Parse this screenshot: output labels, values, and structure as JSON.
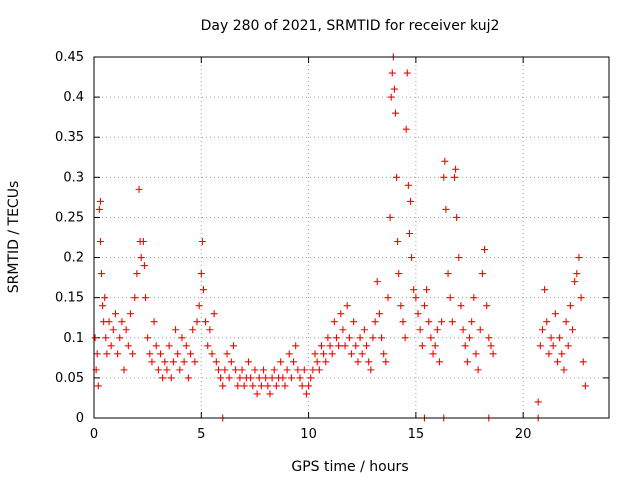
{
  "chart_data": {
    "type": "scatter",
    "title": "Day 280 of 2021, SRMTID for receiver kuj2",
    "xlabel": "GPS time / hours",
    "ylabel": "SRMTID / TECUs",
    "xlim": [
      0,
      24
    ],
    "ylim": [
      0,
      0.45
    ],
    "grid": true,
    "x_ticks": [
      0,
      5,
      10,
      15,
      20
    ],
    "x_tick_labels": [
      "0",
      "5",
      "10",
      "15",
      "20"
    ],
    "y_ticks": [
      0,
      0.05,
      0.1,
      0.15,
      0.2,
      0.25,
      0.3,
      0.35,
      0.4,
      0.45
    ],
    "y_tick_labels": [
      "0",
      "0.05",
      "0.1",
      "0.15",
      "0.2",
      "0.25",
      "0.3",
      "0.35",
      "0.4",
      "0.45"
    ],
    "marker": "+",
    "series": [
      {
        "name": "SRMTID",
        "color": "#ff0000",
        "points": [
          [
            0.05,
            0.1
          ],
          [
            0.1,
            0.06
          ],
          [
            0.15,
            0.08
          ],
          [
            0.2,
            0.04
          ],
          [
            0.25,
            0.26
          ],
          [
            0.3,
            0.27
          ],
          [
            0.3,
            0.22
          ],
          [
            0.35,
            0.18
          ],
          [
            0.4,
            0.14
          ],
          [
            0.45,
            0.12
          ],
          [
            0.5,
            0.15
          ],
          [
            0.55,
            0.1
          ],
          [
            0.6,
            0.08
          ],
          [
            0.7,
            0.12
          ],
          [
            0.8,
            0.09
          ],
          [
            0.9,
            0.11
          ],
          [
            1.0,
            0.13
          ],
          [
            1.1,
            0.08
          ],
          [
            1.2,
            0.1
          ],
          [
            1.3,
            0.12
          ],
          [
            1.4,
            0.06
          ],
          [
            1.5,
            0.11
          ],
          [
            1.6,
            0.09
          ],
          [
            1.7,
            0.13
          ],
          [
            1.8,
            0.08
          ],
          [
            1.9,
            0.15
          ],
          [
            2.0,
            0.18
          ],
          [
            2.1,
            0.285
          ],
          [
            2.15,
            0.22
          ],
          [
            2.2,
            0.2
          ],
          [
            2.3,
            0.22
          ],
          [
            2.35,
            0.19
          ],
          [
            2.4,
            0.15
          ],
          [
            2.5,
            0.1
          ],
          [
            2.6,
            0.08
          ],
          [
            2.7,
            0.07
          ],
          [
            2.8,
            0.12
          ],
          [
            2.9,
            0.09
          ],
          [
            3.0,
            0.06
          ],
          [
            3.1,
            0.08
          ],
          [
            3.2,
            0.05
          ],
          [
            3.3,
            0.07
          ],
          [
            3.4,
            0.06
          ],
          [
            3.5,
            0.09
          ],
          [
            3.6,
            0.05
          ],
          [
            3.7,
            0.07
          ],
          [
            3.8,
            0.11
          ],
          [
            3.9,
            0.08
          ],
          [
            4.0,
            0.06
          ],
          [
            4.1,
            0.1
          ],
          [
            4.2,
            0.07
          ],
          [
            4.3,
            0.09
          ],
          [
            4.4,
            0.05
          ],
          [
            4.5,
            0.08
          ],
          [
            4.6,
            0.11
          ],
          [
            4.7,
            0.07
          ],
          [
            4.8,
            0.12
          ],
          [
            4.9,
            0.14
          ],
          [
            5.0,
            0.18
          ],
          [
            5.05,
            0.22
          ],
          [
            5.1,
            0.16
          ],
          [
            5.2,
            0.12
          ],
          [
            5.3,
            0.09
          ],
          [
            5.4,
            0.11
          ],
          [
            5.5,
            0.08
          ],
          [
            5.6,
            0.13
          ],
          [
            5.7,
            0.07
          ],
          [
            5.8,
            0.06
          ],
          [
            5.9,
            0.05
          ],
          [
            6.0,
            0.04
          ],
          [
            6.1,
            0.06
          ],
          [
            6.2,
            0.08
          ],
          [
            6.3,
            0.05
          ],
          [
            6.4,
            0.07
          ],
          [
            6.5,
            0.09
          ],
          [
            6.6,
            0.06
          ],
          [
            6.7,
            0.04
          ],
          [
            6.8,
            0.05
          ],
          [
            6.9,
            0.06
          ],
          [
            7.0,
            0.04
          ],
          [
            7.1,
            0.05
          ],
          [
            7.2,
            0.07
          ],
          [
            7.3,
            0.05
          ],
          [
            7.4,
            0.04
          ],
          [
            7.5,
            0.06
          ],
          [
            7.6,
            0.03
          ],
          [
            7.7,
            0.05
          ],
          [
            7.8,
            0.04
          ],
          [
            7.9,
            0.06
          ],
          [
            8.0,
            0.05
          ],
          [
            8.1,
            0.04
          ],
          [
            8.2,
            0.03
          ],
          [
            8.3,
            0.05
          ],
          [
            8.4,
            0.06
          ],
          [
            8.5,
            0.04
          ],
          [
            8.6,
            0.05
          ],
          [
            8.7,
            0.07
          ],
          [
            8.8,
            0.05
          ],
          [
            8.9,
            0.04
          ],
          [
            9.0,
            0.06
          ],
          [
            9.1,
            0.08
          ],
          [
            9.2,
            0.05
          ],
          [
            9.3,
            0.07
          ],
          [
            9.4,
            0.09
          ],
          [
            9.5,
            0.06
          ],
          [
            9.6,
            0.05
          ],
          [
            9.7,
            0.04
          ],
          [
            9.8,
            0.06
          ],
          [
            9.9,
            0.03
          ],
          [
            10.0,
            0.04
          ],
          [
            10.1,
            0.05
          ],
          [
            10.2,
            0.06
          ],
          [
            10.3,
            0.08
          ],
          [
            10.4,
            0.07
          ],
          [
            10.5,
            0.06
          ],
          [
            10.6,
            0.09
          ],
          [
            10.7,
            0.08
          ],
          [
            10.8,
            0.07
          ],
          [
            10.9,
            0.1
          ],
          [
            11.0,
            0.09
          ],
          [
            11.1,
            0.08
          ],
          [
            11.2,
            0.12
          ],
          [
            11.3,
            0.1
          ],
          [
            11.4,
            0.09
          ],
          [
            11.5,
            0.13
          ],
          [
            11.6,
            0.11
          ],
          [
            11.7,
            0.09
          ],
          [
            11.8,
            0.14
          ],
          [
            11.9,
            0.1
          ],
          [
            12.0,
            0.08
          ],
          [
            12.1,
            0.12
          ],
          [
            12.2,
            0.09
          ],
          [
            12.3,
            0.07
          ],
          [
            12.4,
            0.1
          ],
          [
            12.5,
            0.08
          ],
          [
            12.6,
            0.11
          ],
          [
            12.7,
            0.09
          ],
          [
            12.8,
            0.07
          ],
          [
            12.9,
            0.06
          ],
          [
            13.0,
            0.1
          ],
          [
            13.1,
            0.12
          ],
          [
            13.2,
            0.17
          ],
          [
            13.3,
            0.13
          ],
          [
            13.4,
            0.1
          ],
          [
            13.5,
            0.08
          ],
          [
            13.6,
            0.07
          ],
          [
            13.7,
            0.15
          ],
          [
            13.8,
            0.25
          ],
          [
            13.85,
            0.4
          ],
          [
            13.9,
            0.43
          ],
          [
            13.95,
            0.45
          ],
          [
            14.0,
            0.41
          ],
          [
            14.05,
            0.38
          ],
          [
            14.1,
            0.3
          ],
          [
            14.15,
            0.22
          ],
          [
            14.2,
            0.18
          ],
          [
            14.3,
            0.14
          ],
          [
            14.4,
            0.12
          ],
          [
            14.5,
            0.1
          ],
          [
            14.55,
            0.36
          ],
          [
            14.6,
            0.43
          ],
          [
            14.65,
            0.29
          ],
          [
            14.7,
            0.23
          ],
          [
            14.75,
            0.27
          ],
          [
            14.8,
            0.2
          ],
          [
            14.9,
            0.16
          ],
          [
            15.0,
            0.15
          ],
          [
            15.1,
            0.13
          ],
          [
            15.2,
            0.11
          ],
          [
            15.3,
            0.09
          ],
          [
            15.4,
            0.14
          ],
          [
            15.5,
            0.16
          ],
          [
            15.6,
            0.12
          ],
          [
            15.7,
            0.1
          ],
          [
            15.8,
            0.08
          ],
          [
            15.9,
            0.09
          ],
          [
            16.0,
            0.11
          ],
          [
            16.1,
            0.07
          ],
          [
            16.2,
            0.12
          ],
          [
            16.3,
            0.3
          ],
          [
            16.35,
            0.32
          ],
          [
            16.4,
            0.26
          ],
          [
            16.5,
            0.18
          ],
          [
            16.6,
            0.15
          ],
          [
            16.7,
            0.12
          ],
          [
            16.8,
            0.3
          ],
          [
            16.85,
            0.31
          ],
          [
            16.9,
            0.25
          ],
          [
            17.0,
            0.2
          ],
          [
            17.1,
            0.14
          ],
          [
            17.2,
            0.11
          ],
          [
            17.3,
            0.09
          ],
          [
            17.4,
            0.07
          ],
          [
            17.5,
            0.1
          ],
          [
            17.6,
            0.12
          ],
          [
            17.7,
            0.15
          ],
          [
            17.8,
            0.08
          ],
          [
            17.9,
            0.06
          ],
          [
            18.0,
            0.11
          ],
          [
            18.1,
            0.18
          ],
          [
            18.2,
            0.21
          ],
          [
            18.3,
            0.14
          ],
          [
            18.4,
            0.1
          ],
          [
            18.5,
            0.09
          ],
          [
            18.6,
            0.08
          ],
          [
            20.7,
            0.02
          ],
          [
            20.8,
            0.09
          ],
          [
            20.9,
            0.11
          ],
          [
            21.0,
            0.16
          ],
          [
            21.1,
            0.12
          ],
          [
            21.2,
            0.08
          ],
          [
            21.3,
            0.1
          ],
          [
            21.4,
            0.09
          ],
          [
            21.5,
            0.13
          ],
          [
            21.6,
            0.07
          ],
          [
            21.7,
            0.1
          ],
          [
            21.8,
            0.08
          ],
          [
            21.9,
            0.06
          ],
          [
            22.0,
            0.12
          ],
          [
            22.1,
            0.09
          ],
          [
            22.2,
            0.14
          ],
          [
            22.3,
            0.11
          ],
          [
            22.4,
            0.17
          ],
          [
            22.5,
            0.18
          ],
          [
            22.6,
            0.2
          ],
          [
            22.7,
            0.15
          ],
          [
            22.8,
            0.07
          ],
          [
            22.9,
            0.04
          ]
        ]
      },
      {
        "name": "zero-value markers",
        "color": "#ff0000",
        "points": [
          [
            6.0,
            0.0
          ],
          [
            15.4,
            0.0
          ],
          [
            16.3,
            0.0
          ],
          [
            18.4,
            0.0
          ],
          [
            20.7,
            0.0
          ]
        ]
      }
    ]
  }
}
